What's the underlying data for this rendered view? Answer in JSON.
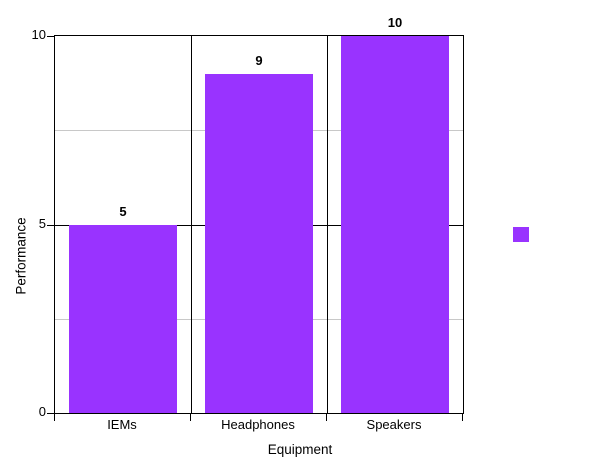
{
  "figure": {
    "background": "#ffffff"
  },
  "chart_data": {
    "type": "bar",
    "title": "",
    "categories": [
      "IEMs",
      "Headphones",
      "Speakers"
    ],
    "values": [
      5,
      9,
      10
    ],
    "value_labels": [
      "5",
      "9",
      "10"
    ],
    "xlabel": "Equipment",
    "ylabel": "Performance",
    "ylim": [
      0,
      10
    ],
    "yticks": [
      0,
      5,
      10
    ],
    "ytick_labels": [
      "0",
      "5",
      "10"
    ],
    "minor_gridlines": [
      2.5,
      7.5
    ],
    "grid": true,
    "bar_color": "#9933FF",
    "axis_color": "#000000",
    "minor_grid_color": "#c8c8c8",
    "legend": {
      "position": "right",
      "label": "",
      "marker_color": "#9933FF"
    }
  }
}
